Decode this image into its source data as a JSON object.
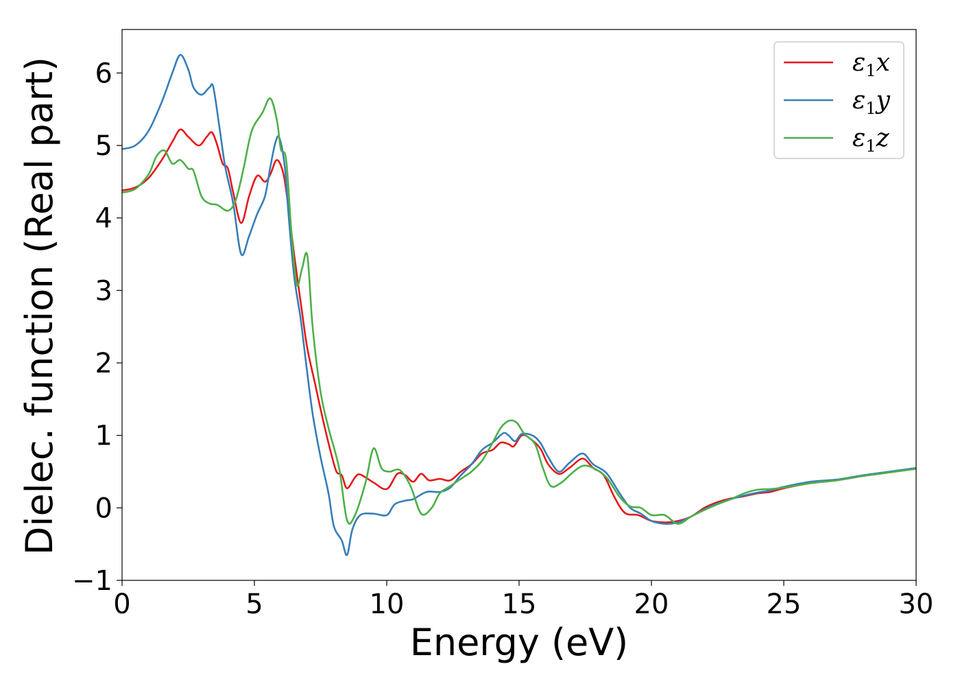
{
  "chart_data": {
    "type": "line",
    "title": "",
    "xlabel": "Energy (eV)",
    "ylabel": "Dielec. function (Real part)",
    "xlim": [
      0,
      30
    ],
    "ylim": [
      -1,
      6.6
    ],
    "xticks": [
      0,
      5,
      10,
      15,
      20,
      25,
      30
    ],
    "xtick_labels": [
      "0",
      "5",
      "10",
      "15",
      "20",
      "25",
      "30"
    ],
    "yticks": [
      -1,
      0,
      1,
      2,
      3,
      4,
      5,
      6
    ],
    "ytick_labels": [
      "−1",
      "0",
      "1",
      "2",
      "3",
      "4",
      "5",
      "6"
    ],
    "grid": false,
    "legend_position": "top-right",
    "series": [
      {
        "name": "ε₁x",
        "legend_base": "ε",
        "legend_sub": "1",
        "legend_var": "x",
        "color": "#e41a1c",
        "points": [
          [
            0,
            4.38
          ],
          [
            0.5,
            4.42
          ],
          [
            1.0,
            4.55
          ],
          [
            1.5,
            4.8
          ],
          [
            1.9,
            5.05
          ],
          [
            2.2,
            5.22
          ],
          [
            2.5,
            5.12
          ],
          [
            2.9,
            5.0
          ],
          [
            3.2,
            5.12
          ],
          [
            3.4,
            5.18
          ],
          [
            3.6,
            5.0
          ],
          [
            3.8,
            4.75
          ],
          [
            4.0,
            4.68
          ],
          [
            4.2,
            4.35
          ],
          [
            4.5,
            3.93
          ],
          [
            4.8,
            4.3
          ],
          [
            5.1,
            4.58
          ],
          [
            5.4,
            4.5
          ],
          [
            5.6,
            4.6
          ],
          [
            5.85,
            4.8
          ],
          [
            6.1,
            4.6
          ],
          [
            6.3,
            4.1
          ],
          [
            6.5,
            3.5
          ],
          [
            6.8,
            2.7
          ],
          [
            7.0,
            2.2
          ],
          [
            7.3,
            1.7
          ],
          [
            7.6,
            1.2
          ],
          [
            7.9,
            0.75
          ],
          [
            8.1,
            0.5
          ],
          [
            8.3,
            0.45
          ],
          [
            8.5,
            0.27
          ],
          [
            8.8,
            0.42
          ],
          [
            9.0,
            0.46
          ],
          [
            9.5,
            0.35
          ],
          [
            10.0,
            0.26
          ],
          [
            10.4,
            0.47
          ],
          [
            10.7,
            0.45
          ],
          [
            11.0,
            0.36
          ],
          [
            11.3,
            0.47
          ],
          [
            11.6,
            0.38
          ],
          [
            12.0,
            0.4
          ],
          [
            12.4,
            0.38
          ],
          [
            12.8,
            0.5
          ],
          [
            13.2,
            0.6
          ],
          [
            13.6,
            0.75
          ],
          [
            14.0,
            0.8
          ],
          [
            14.3,
            0.9
          ],
          [
            14.6,
            0.88
          ],
          [
            14.8,
            0.85
          ],
          [
            15.1,
            1.0
          ],
          [
            15.4,
            0.96
          ],
          [
            15.8,
            0.82
          ],
          [
            16.1,
            0.6
          ],
          [
            16.5,
            0.47
          ],
          [
            16.9,
            0.55
          ],
          [
            17.4,
            0.68
          ],
          [
            17.8,
            0.55
          ],
          [
            18.2,
            0.45
          ],
          [
            18.6,
            0.15
          ],
          [
            19.0,
            -0.07
          ],
          [
            19.5,
            -0.1
          ],
          [
            20.0,
            -0.18
          ],
          [
            20.5,
            -0.2
          ],
          [
            21.0,
            -0.18
          ],
          [
            21.5,
            -0.12
          ],
          [
            22.0,
            0.0
          ],
          [
            22.5,
            0.08
          ],
          [
            23.0,
            0.13
          ],
          [
            23.5,
            0.16
          ],
          [
            24.0,
            0.2
          ],
          [
            24.5,
            0.22
          ],
          [
            25.0,
            0.27
          ],
          [
            26.0,
            0.34
          ],
          [
            27.0,
            0.38
          ],
          [
            28.0,
            0.44
          ],
          [
            29.0,
            0.49
          ],
          [
            30.0,
            0.54
          ]
        ]
      },
      {
        "name": "ε₁y",
        "legend_base": "ε",
        "legend_sub": "1",
        "legend_var": "y",
        "color": "#377eb8",
        "points": [
          [
            0,
            4.95
          ],
          [
            0.5,
            5.0
          ],
          [
            1.0,
            5.2
          ],
          [
            1.5,
            5.6
          ],
          [
            1.9,
            6.0
          ],
          [
            2.2,
            6.25
          ],
          [
            2.5,
            6.05
          ],
          [
            2.7,
            5.8
          ],
          [
            3.0,
            5.7
          ],
          [
            3.3,
            5.8
          ],
          [
            3.45,
            5.8
          ],
          [
            3.7,
            5.2
          ],
          [
            3.9,
            4.7
          ],
          [
            4.2,
            4.2
          ],
          [
            4.5,
            3.5
          ],
          [
            4.8,
            3.75
          ],
          [
            5.1,
            4.05
          ],
          [
            5.4,
            4.3
          ],
          [
            5.6,
            4.7
          ],
          [
            5.8,
            5.05
          ],
          [
            5.95,
            5.1
          ],
          [
            6.15,
            4.7
          ],
          [
            6.3,
            4.0
          ],
          [
            6.5,
            3.2
          ],
          [
            6.75,
            2.6
          ],
          [
            6.95,
            2.0
          ],
          [
            7.2,
            1.3
          ],
          [
            7.5,
            0.7
          ],
          [
            7.8,
            0.2
          ],
          [
            8.0,
            -0.25
          ],
          [
            8.3,
            -0.45
          ],
          [
            8.5,
            -0.65
          ],
          [
            8.7,
            -0.3
          ],
          [
            9.0,
            -0.1
          ],
          [
            9.5,
            -0.08
          ],
          [
            10.0,
            -0.1
          ],
          [
            10.3,
            0.05
          ],
          [
            10.7,
            0.1
          ],
          [
            11.0,
            0.12
          ],
          [
            11.5,
            0.22
          ],
          [
            12.0,
            0.22
          ],
          [
            12.4,
            0.28
          ],
          [
            12.8,
            0.45
          ],
          [
            13.2,
            0.6
          ],
          [
            13.6,
            0.8
          ],
          [
            14.0,
            0.9
          ],
          [
            14.4,
            1.03
          ],
          [
            14.6,
            1.0
          ],
          [
            14.85,
            0.92
          ],
          [
            15.1,
            1.02
          ],
          [
            15.5,
            1.0
          ],
          [
            15.8,
            0.9
          ],
          [
            16.1,
            0.7
          ],
          [
            16.5,
            0.5
          ],
          [
            16.9,
            0.62
          ],
          [
            17.4,
            0.75
          ],
          [
            17.8,
            0.6
          ],
          [
            18.3,
            0.48
          ],
          [
            18.8,
            0.2
          ],
          [
            19.2,
            0.0
          ],
          [
            19.6,
            -0.08
          ],
          [
            20.0,
            -0.18
          ],
          [
            20.5,
            -0.22
          ],
          [
            21.0,
            -0.2
          ],
          [
            21.5,
            -0.12
          ],
          [
            22.0,
            -0.02
          ],
          [
            22.5,
            0.06
          ],
          [
            23.0,
            0.12
          ],
          [
            23.5,
            0.17
          ],
          [
            24.0,
            0.21
          ],
          [
            24.5,
            0.24
          ],
          [
            25.0,
            0.29
          ],
          [
            26.0,
            0.36
          ],
          [
            27.0,
            0.39
          ],
          [
            28.0,
            0.45
          ],
          [
            29.0,
            0.5
          ],
          [
            30.0,
            0.55
          ]
        ]
      },
      {
        "name": "ε₁z",
        "legend_base": "ε",
        "legend_sub": "1",
        "legend_var": "z",
        "color": "#4daf4a",
        "points": [
          [
            0,
            4.35
          ],
          [
            0.5,
            4.4
          ],
          [
            1.0,
            4.6
          ],
          [
            1.3,
            4.85
          ],
          [
            1.6,
            4.93
          ],
          [
            1.9,
            4.75
          ],
          [
            2.2,
            4.8
          ],
          [
            2.5,
            4.68
          ],
          [
            2.7,
            4.65
          ],
          [
            3.0,
            4.3
          ],
          [
            3.3,
            4.2
          ],
          [
            3.6,
            4.18
          ],
          [
            4.0,
            4.1
          ],
          [
            4.3,
            4.25
          ],
          [
            4.6,
            4.7
          ],
          [
            4.9,
            5.2
          ],
          [
            5.3,
            5.45
          ],
          [
            5.6,
            5.65
          ],
          [
            5.85,
            5.35
          ],
          [
            6.0,
            4.95
          ],
          [
            6.2,
            4.8
          ],
          [
            6.4,
            3.8
          ],
          [
            6.6,
            3.08
          ],
          [
            6.8,
            3.3
          ],
          [
            7.0,
            3.48
          ],
          [
            7.2,
            2.5
          ],
          [
            7.5,
            1.6
          ],
          [
            7.8,
            1.1
          ],
          [
            8.2,
            0.55
          ],
          [
            8.5,
            -0.17
          ],
          [
            8.8,
            -0.1
          ],
          [
            9.2,
            0.35
          ],
          [
            9.5,
            0.82
          ],
          [
            9.8,
            0.55
          ],
          [
            10.1,
            0.5
          ],
          [
            10.5,
            0.52
          ],
          [
            10.9,
            0.3
          ],
          [
            11.3,
            -0.08
          ],
          [
            11.7,
            0.0
          ],
          [
            12.0,
            0.2
          ],
          [
            12.4,
            0.3
          ],
          [
            12.8,
            0.4
          ],
          [
            13.2,
            0.5
          ],
          [
            13.6,
            0.65
          ],
          [
            14.0,
            0.9
          ],
          [
            14.3,
            1.1
          ],
          [
            14.6,
            1.2
          ],
          [
            14.9,
            1.18
          ],
          [
            15.2,
            1.02
          ],
          [
            15.6,
            0.88
          ],
          [
            15.9,
            0.55
          ],
          [
            16.2,
            0.3
          ],
          [
            16.6,
            0.35
          ],
          [
            17.0,
            0.48
          ],
          [
            17.4,
            0.58
          ],
          [
            17.8,
            0.55
          ],
          [
            18.3,
            0.42
          ],
          [
            18.8,
            0.15
          ],
          [
            19.2,
            0.02
          ],
          [
            19.6,
            0.0
          ],
          [
            20.0,
            -0.1
          ],
          [
            20.5,
            -0.1
          ],
          [
            21.0,
            -0.22
          ],
          [
            21.5,
            -0.12
          ],
          [
            22.0,
            -0.03
          ],
          [
            22.5,
            0.05
          ],
          [
            23.0,
            0.12
          ],
          [
            23.5,
            0.2
          ],
          [
            24.0,
            0.25
          ],
          [
            24.5,
            0.26
          ],
          [
            25.0,
            0.28
          ],
          [
            26.0,
            0.34
          ],
          [
            27.0,
            0.38
          ],
          [
            28.0,
            0.44
          ],
          [
            29.0,
            0.49
          ],
          [
            30.0,
            0.54
          ]
        ]
      }
    ]
  }
}
